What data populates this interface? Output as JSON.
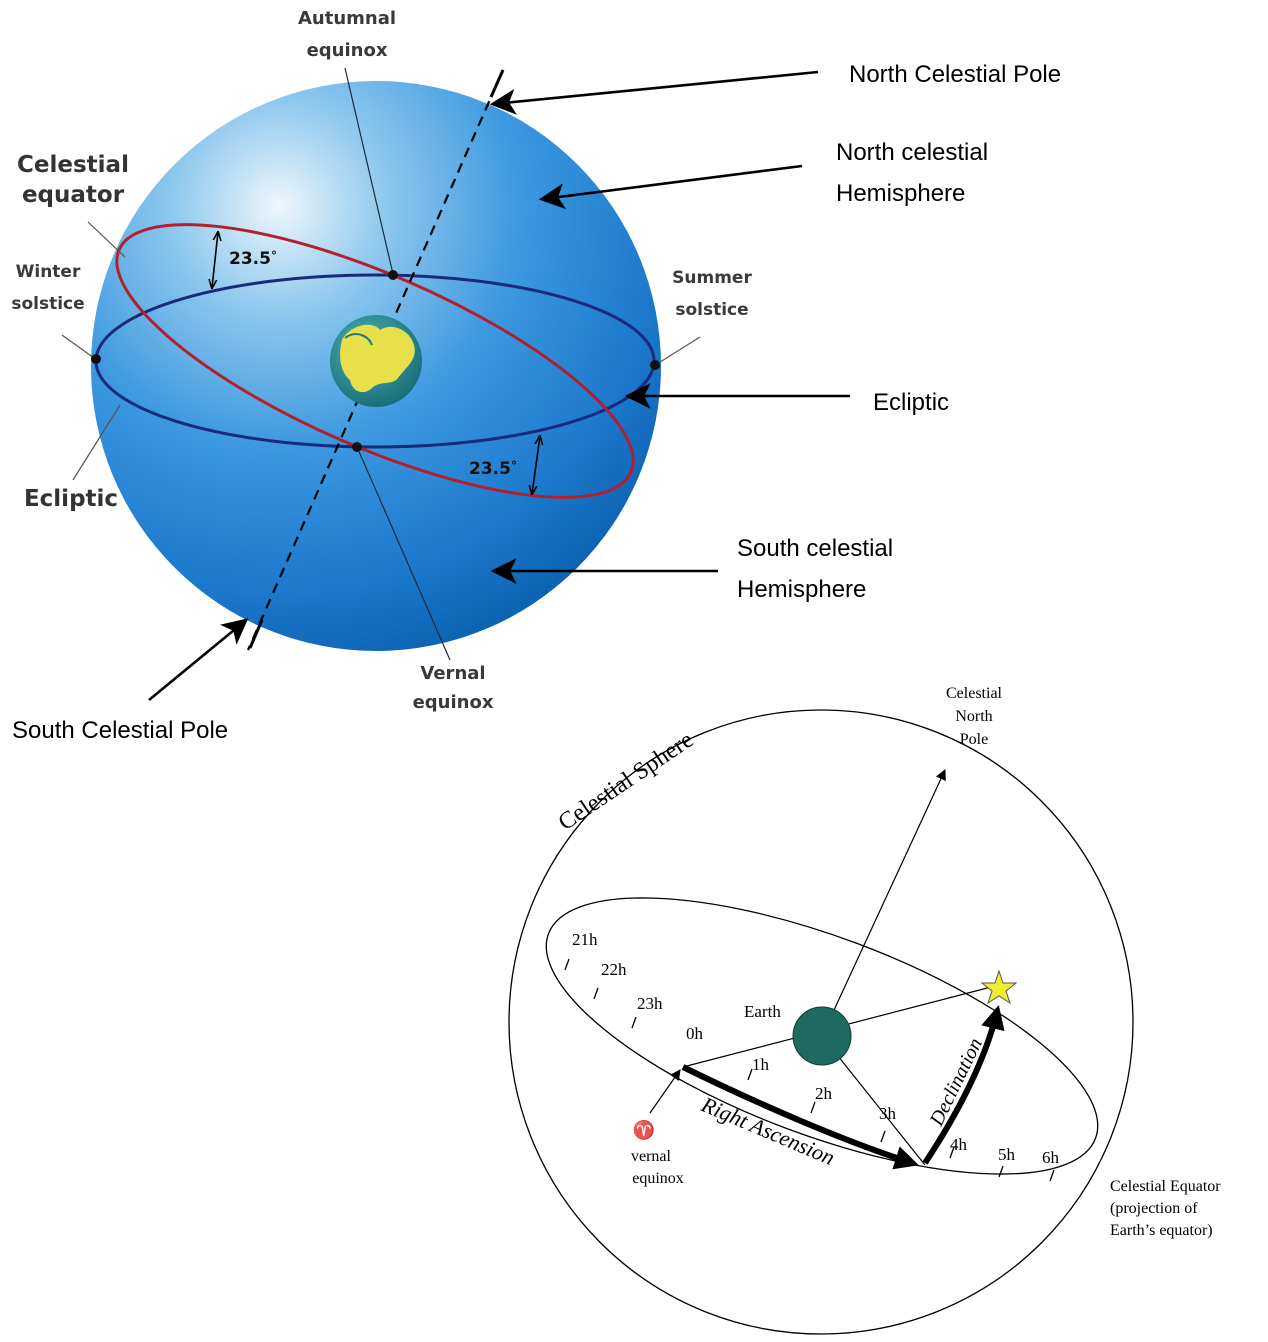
{
  "sphere_diagram": {
    "autumnal_equinox": [
      "Autumnal",
      "equinox"
    ],
    "celestial_equator": [
      "Celestial",
      "equator"
    ],
    "winter_solstice": [
      "Winter",
      "solstice"
    ],
    "summer_solstice": [
      "Summer",
      "solstice"
    ],
    "ecliptic_left": "Ecliptic",
    "vernal_equinox": [
      "Vernal",
      "equinox"
    ],
    "tilt_angle_top": "23.5",
    "tilt_angle_bottom": "23.5",
    "degree_symbol": "°"
  },
  "callouts": {
    "north_celestial_pole": "North Celestial Pole",
    "north_hemisphere": [
      "North celestial",
      "Hemisphere"
    ],
    "ecliptic": "Ecliptic",
    "south_hemisphere": [
      "South celestial",
      "Hemisphere"
    ],
    "south_celestial_pole": "South Celestial Pole"
  },
  "coord_diagram": {
    "sphere_label": "Celestial Sphere",
    "north_pole": [
      "Celestial",
      "North",
      "Pole"
    ],
    "earth": "Earth",
    "right_ascension": "Right Ascension",
    "declination": "Declination",
    "aries_symbol": "♈",
    "vernal_equinox": [
      "vernal",
      "equinox"
    ],
    "celestial_equator": [
      "Celestial Equator",
      "(projection of",
      "Earth’s equator)"
    ],
    "hour_marks": [
      "21h",
      "22h",
      "23h",
      "0h",
      "1h",
      "2h",
      "3h",
      "4h",
      "5h",
      "6h"
    ]
  },
  "colors": {
    "sphere_light": "#e8f4fb",
    "sphere_mid": "#3f9ae0",
    "sphere_dark": "#0b63b5",
    "ecliptic_red": "#b3202b",
    "equator_navy": "#1a2a7a",
    "earth_teal": "#1f7b84",
    "earth_land": "#e8e04a",
    "star_yellow": "#f3ec2f",
    "ink": "#000000"
  }
}
